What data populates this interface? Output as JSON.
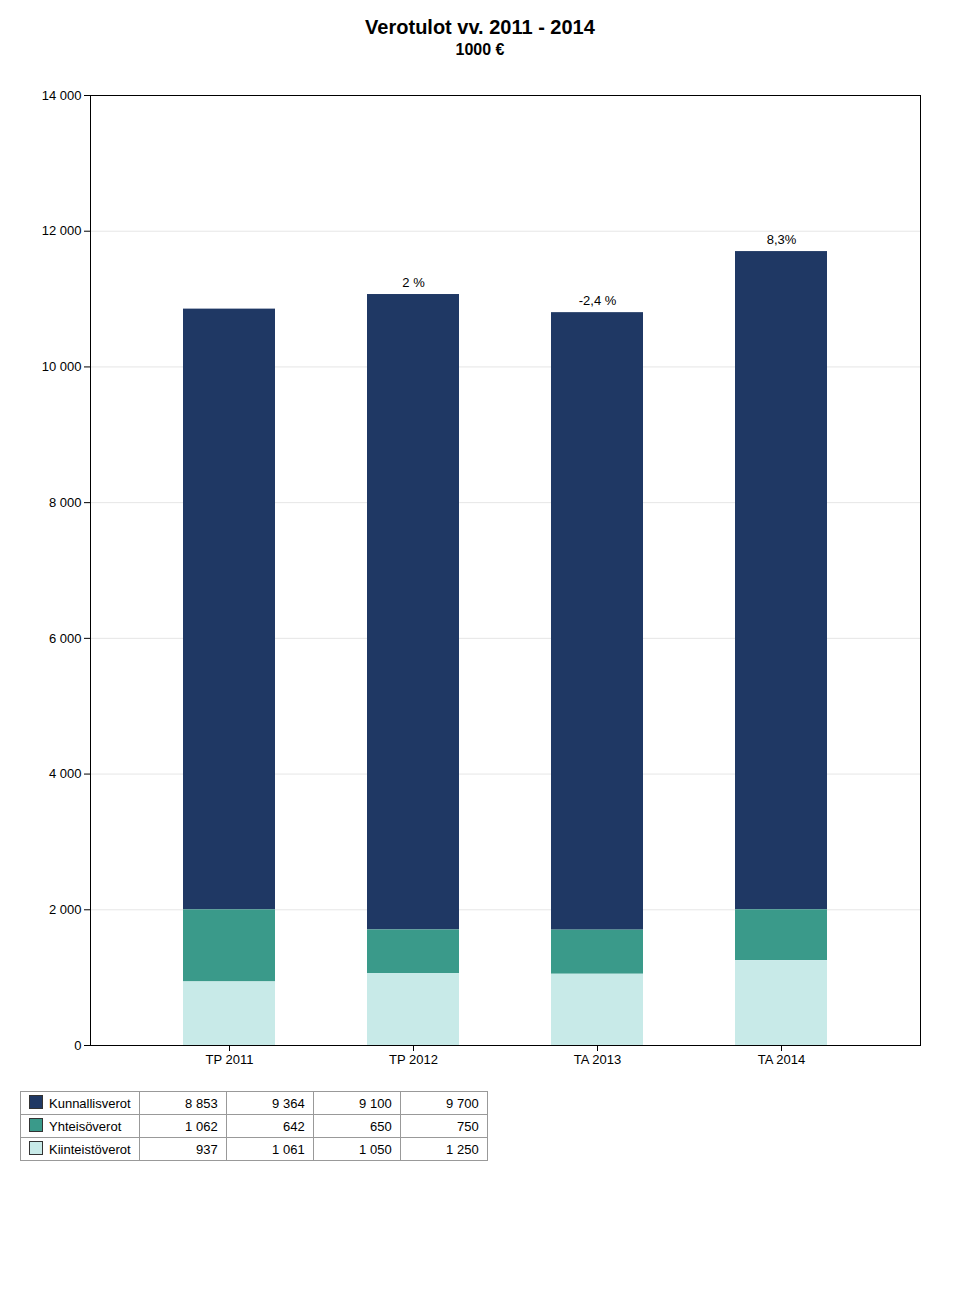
{
  "chart_data": {
    "type": "bar",
    "title": "Verotulot vv. 2011 - 2014",
    "subtitle": "1000 €",
    "categories": [
      "TP 2011",
      "TP 2012",
      "TA 2013",
      "TA 2014"
    ],
    "series": [
      {
        "name": "Kunnallisverot",
        "color": "#1F3864",
        "values": [
          8853,
          9364,
          9100,
          9700
        ],
        "value_labels": [
          "8 853",
          "9 364",
          "9 100",
          "9 700"
        ]
      },
      {
        "name": "Yhteisöverot",
        "color": "#3A9A8A",
        "values": [
          1062,
          642,
          650,
          750
        ],
        "value_labels": [
          "1 062",
          "642",
          "650",
          "750"
        ]
      },
      {
        "name": "Kiinteistöverot",
        "color": "#C8EAE8",
        "values": [
          937,
          1061,
          1050,
          1250
        ],
        "value_labels": [
          "937",
          "1 061",
          "1 050",
          "1 250"
        ]
      }
    ],
    "stacked": true,
    "annotations": [
      null,
      "2 %",
      "-2,4 %",
      "8,3%"
    ],
    "ylim": [
      0,
      14000
    ],
    "yticks": [
      0,
      {
        "value": 2000,
        "label": "2 000"
      },
      {
        "value": 4000,
        "label": "4 000"
      },
      {
        "value": 6000,
        "label": "6 000"
      },
      {
        "value": 8000,
        "label": "8 000"
      },
      {
        "value": 10000,
        "label": "10 000"
      },
      {
        "value": 12000,
        "label": "12 000"
      },
      {
        "value": 14000,
        "label": "14 000"
      }
    ],
    "grid": true
  }
}
